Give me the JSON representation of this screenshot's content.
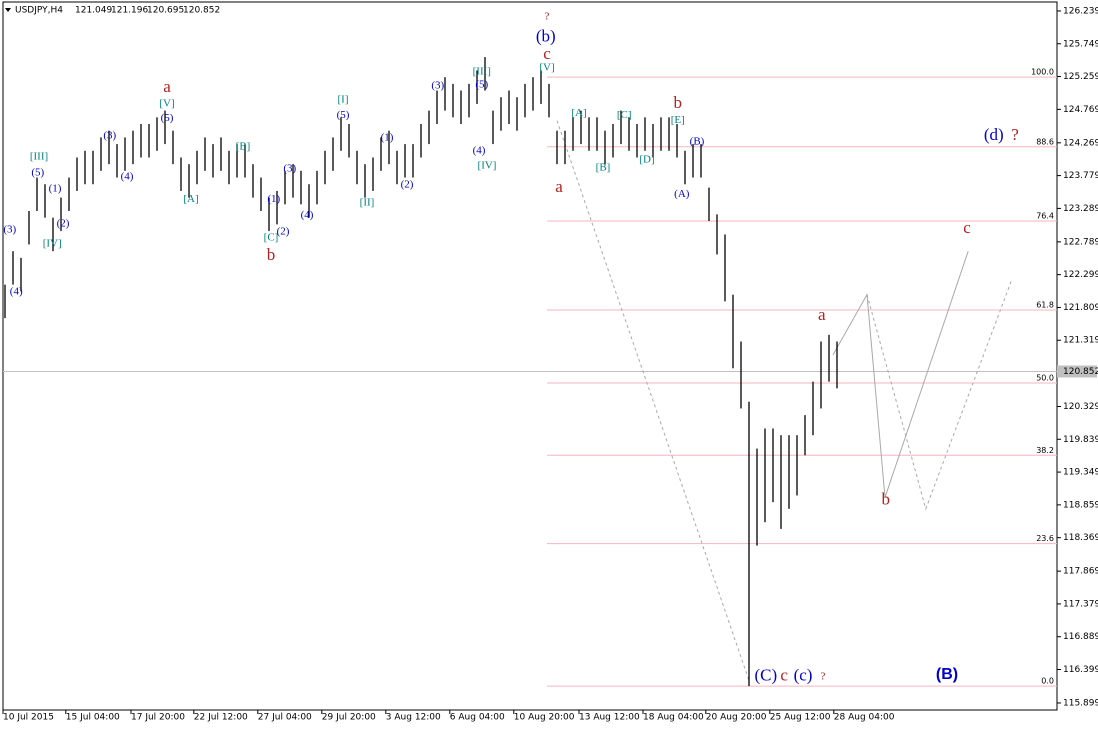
{
  "chart_data": {
    "type": "ohlc",
    "header": {
      "symbol": "USDJPY,H4",
      "open": 121.049,
      "high": 121.196,
      "low": 120.695,
      "close": 120.852
    },
    "color": "#000000",
    "xlim": [
      -0.25,
      131.5
    ],
    "ylim": [
      115.794,
      126.373
    ],
    "yticks": [
      126.239,
      125.749,
      125.259,
      124.769,
      124.269,
      123.779,
      123.289,
      122.789,
      122.299,
      121.809,
      121.319,
      120.329,
      119.839,
      119.349,
      118.859,
      118.369,
      117.869,
      117.379,
      116.889,
      116.399,
      115.899
    ],
    "xticks": [
      {
        "value": -0.25,
        "label": "10 Jul 2015"
      },
      {
        "value": 7.6,
        "label": "15 Jul 04:00"
      },
      {
        "value": 15.75,
        "label": "17 Jul 20:00"
      },
      {
        "value": 23.6,
        "label": "22 Jul 12:00"
      },
      {
        "value": 31.6,
        "label": "27 Jul 04:00"
      },
      {
        "value": 39.6,
        "label": "29 Jul 20:00"
      },
      {
        "value": 47.6,
        "label": "3 Aug 12:00"
      },
      {
        "value": 55.6,
        "label": "6 Aug 04:00"
      },
      {
        "value": 63.6,
        "label": "10 Aug 20:00"
      },
      {
        "value": 71.75,
        "label": "13 Aug 12:00"
      },
      {
        "value": 79.75,
        "label": "18 Aug 04:00"
      },
      {
        "value": 87.6,
        "label": "20 Aug 20:00"
      },
      {
        "value": 95.6,
        "label": "25 Aug 12:00"
      },
      {
        "value": 103.6,
        "label": "28 Aug 04:00"
      }
    ],
    "high": [
      122.15,
      122.65,
      122.55,
      123.25,
      123.75,
      123.65,
      123.15,
      123.45,
      123.75,
      124.05,
      124.15,
      124.15,
      124.35,
      124.45,
      124.25,
      124.35,
      124.45,
      124.55,
      124.55,
      124.65,
      124.75,
      124.45,
      124.05,
      123.95,
      124.15,
      124.35,
      124.25,
      124.35,
      124.15,
      124.25,
      124.25,
      123.95,
      123.75,
      123.45,
      123.55,
      123.85,
      123.95,
      123.85,
      123.65,
      123.85,
      124.15,
      124.35,
      124.65,
      124.55,
      124.15,
      123.95,
      124.05,
      124.35,
      124.45,
      124.15,
      124.25,
      124.25,
      124.55,
      124.75,
      125.05,
      125.25,
      125.15,
      125.05,
      125.15,
      125.35,
      125.55,
      124.75,
      124.95,
      125.05,
      124.95,
      125.15,
      125.25,
      125.35,
      125.15,
      124.45,
      124.45,
      124.65,
      124.75,
      124.65,
      124.65,
      124.45,
      124.55,
      124.75,
      124.65,
      124.55,
      124.65,
      124.55,
      124.65,
      124.65,
      124.55,
      124.15,
      124.25,
      124.25,
      123.6,
      123.2,
      122.9,
      122.0,
      121.3,
      120.4,
      119.7,
      120.0,
      120.0,
      119.9,
      119.9,
      119.9,
      120.2,
      120.7,
      121.3,
      121.4,
      121.3
    ],
    "low": [
      121.65,
      122.15,
      122.05,
      122.75,
      123.25,
      123.15,
      122.65,
      122.95,
      123.25,
      123.55,
      123.65,
      123.65,
      123.85,
      123.95,
      123.75,
      123.85,
      123.95,
      124.05,
      124.05,
      124.15,
      124.25,
      123.95,
      123.55,
      123.45,
      123.65,
      123.85,
      123.75,
      123.85,
      123.65,
      123.75,
      123.75,
      123.45,
      123.25,
      122.95,
      123.05,
      123.35,
      123.45,
      123.35,
      123.15,
      123.35,
      123.65,
      123.85,
      124.15,
      124.05,
      123.65,
      123.45,
      123.55,
      123.85,
      123.95,
      123.65,
      123.75,
      123.75,
      124.05,
      124.25,
      124.55,
      124.75,
      124.65,
      124.55,
      124.65,
      124.85,
      125.05,
      124.25,
      124.45,
      124.55,
      124.45,
      124.65,
      124.75,
      124.85,
      124.65,
      123.95,
      123.95,
      124.15,
      124.25,
      124.15,
      124.15,
      123.95,
      124.05,
      124.25,
      124.15,
      124.05,
      124.15,
      124.05,
      124.15,
      124.15,
      124.05,
      123.65,
      123.75,
      123.75,
      123.1,
      122.6,
      121.9,
      120.9,
      120.3,
      116.15,
      118.25,
      118.6,
      118.9,
      118.5,
      118.8,
      119.0,
      119.6,
      119.9,
      120.3,
      120.7,
      120.6
    ],
    "fib_color": "#f4b6c2",
    "fib_start": 67.75,
    "fib_levels": [
      {
        "label": "100.0",
        "price": 125.25
      },
      {
        "label": "88.6",
        "price": 124.21
      },
      {
        "label": "76.4",
        "price": 123.1
      },
      {
        "label": "61.8",
        "price": 121.77
      },
      {
        "label": "50.0",
        "price": 120.68
      },
      {
        "label": "38.2",
        "price": 119.6
      },
      {
        "label": "23.6",
        "price": 118.28
      },
      {
        "label": "0.0",
        "price": 116.15
      }
    ],
    "projections": [
      {
        "style": "dashed",
        "x": [
          69,
          93.1
        ],
        "y": [
          124.6,
          116.2
        ]
      },
      {
        "style": "solid",
        "x": [
          103.5,
          107.75,
          110,
          120.4
        ],
        "y": [
          121.1,
          122.0,
          118.97,
          122.65
        ]
      },
      {
        "style": "dashed",
        "x": [
          107.75,
          115.1,
          125.9
        ],
        "y": [
          122.0,
          118.8,
          122.24
        ]
      }
    ],
    "annotations": [
      {
        "text": "?",
        "x": 67.75,
        "y": 126.15,
        "color": "#b22222"
      },
      {
        "text": "(b)",
        "x": 67.6,
        "y": 125.84,
        "color": "#0000cc",
        "size": "large"
      },
      {
        "text": "c",
        "x": 67.75,
        "y": 125.58,
        "color": "#b22222",
        "size": "large"
      },
      {
        "text": "[V]",
        "x": 67.75,
        "y": 125.39,
        "color": "#008080"
      },
      {
        "text": "a",
        "x": 20.25,
        "y": 125.09,
        "color": "#b22222",
        "size": "large"
      },
      {
        "text": "[V]",
        "x": 20.25,
        "y": 124.85,
        "color": "#008080"
      },
      {
        "text": "(5)",
        "x": 20.25,
        "y": 124.63,
        "color": "#0000cc"
      },
      {
        "text": "(3)",
        "x": 13.1,
        "y": 124.37,
        "color": "#0000cc"
      },
      {
        "text": "(4)",
        "x": 15.25,
        "y": 123.76,
        "color": "#0000cc"
      },
      {
        "text": "[III]",
        "x": 4.25,
        "y": 124.06,
        "color": "#008080"
      },
      {
        "text": "(5)",
        "x": 4.1,
        "y": 123.82,
        "color": "#0000cc"
      },
      {
        "text": "(1)",
        "x": 6.25,
        "y": 123.58,
        "color": "#0000cc"
      },
      {
        "text": "(2)",
        "x": 7.25,
        "y": 123.06,
        "color": "#0000cc"
      },
      {
        "text": "[IV]",
        "x": 5.9,
        "y": 122.76,
        "color": "#008080"
      },
      {
        "text": "(3)",
        "x": 0.6,
        "y": 122.97,
        "color": "#0000cc"
      },
      {
        "text": "(4)",
        "x": 1.4,
        "y": 122.04,
        "color": "#0000cc"
      },
      {
        "text": "[A]",
        "x": 23.25,
        "y": 123.42,
        "color": "#008080"
      },
      {
        "text": "[B]",
        "x": 29.75,
        "y": 124.21,
        "color": "#008080"
      },
      {
        "text": "(3)",
        "x": 35.6,
        "y": 123.88,
        "color": "#0000cc"
      },
      {
        "text": "(1)",
        "x": 33.6,
        "y": 123.42,
        "color": "#0000cc"
      },
      {
        "text": "(2)",
        "x": 34.75,
        "y": 122.94,
        "color": "#0000cc"
      },
      {
        "text": "[C]",
        "x": 33.25,
        "y": 122.85,
        "color": "#008080"
      },
      {
        "text": "b",
        "x": 33.25,
        "y": 122.58,
        "color": "#b22222",
        "size": "large"
      },
      {
        "text": "(4)",
        "x": 37.75,
        "y": 123.18,
        "color": "#0000cc"
      },
      {
        "text": "[I]",
        "x": 42.25,
        "y": 124.91,
        "color": "#008080"
      },
      {
        "text": "(5)",
        "x": 42.25,
        "y": 124.68,
        "color": "#0000cc"
      },
      {
        "text": "(1)",
        "x": 47.75,
        "y": 124.34,
        "color": "#0000cc"
      },
      {
        "text": "[II]",
        "x": 45.25,
        "y": 123.37,
        "color": "#008080"
      },
      {
        "text": "(2)",
        "x": 50.25,
        "y": 123.64,
        "color": "#0000cc"
      },
      {
        "text": "(3)",
        "x": 54.1,
        "y": 125.12,
        "color": "#0000cc"
      },
      {
        "text": "[III]",
        "x": 59.6,
        "y": 125.33,
        "color": "#008080"
      },
      {
        "text": "(5)",
        "x": 59.6,
        "y": 125.13,
        "color": "#0000cc"
      },
      {
        "text": "(4)",
        "x": 59.25,
        "y": 124.15,
        "color": "#0000cc"
      },
      {
        "text": "[IV]",
        "x": 60.25,
        "y": 123.92,
        "color": "#008080"
      },
      {
        "text": "[A]",
        "x": 71.75,
        "y": 124.71,
        "color": "#008080"
      },
      {
        "text": "[C]",
        "x": 77.4,
        "y": 124.68,
        "color": "#008080"
      },
      {
        "text": "[B]",
        "x": 74.75,
        "y": 123.89,
        "color": "#008080"
      },
      {
        "text": "[D]",
        "x": 80.25,
        "y": 124.01,
        "color": "#008080"
      },
      {
        "text": "b",
        "x": 84.1,
        "y": 124.85,
        "color": "#b22222",
        "size": "large"
      },
      {
        "text": "[E]",
        "x": 84.1,
        "y": 124.6,
        "color": "#008080"
      },
      {
        "text": "(B)",
        "x": 86.5,
        "y": 124.28,
        "color": "#0000cc"
      },
      {
        "text": "(A)",
        "x": 84.6,
        "y": 123.5,
        "color": "#0000cc"
      },
      {
        "text": "a",
        "x": 69.25,
        "y": 123.59,
        "color": "#b22222",
        "size": "large"
      },
      {
        "text": "(d)",
        "x": 123.6,
        "y": 124.37,
        "color": "#0000cc",
        "size": "large"
      },
      {
        "text": "?",
        "x": 126.25,
        "y": 124.37,
        "color": "#b22222",
        "size": "large"
      },
      {
        "text": "c",
        "x": 120.25,
        "y": 122.98,
        "color": "#b22222",
        "size": "large"
      },
      {
        "text": "a",
        "x": 102.1,
        "y": 121.68,
        "color": "#b22222",
        "size": "large"
      },
      {
        "text": "b",
        "x": 110.1,
        "y": 118.92,
        "color": "#b22222",
        "size": "large"
      },
      {
        "text": "(C)",
        "x": 95.1,
        "y": 116.29,
        "color": "#0000cc",
        "size": "large"
      },
      {
        "text": "c",
        "x": 97.4,
        "y": 116.29,
        "color": "#b22222",
        "size": "large"
      },
      {
        "text": "(c)",
        "x": 99.75,
        "y": 116.29,
        "color": "#0000cc",
        "size": "large"
      },
      {
        "text": "?",
        "x": 102.25,
        "y": 116.29,
        "color": "#b22222"
      },
      {
        "text": "(B)",
        "x": 117.75,
        "y": 116.32,
        "color": "#0000cc",
        "size": "bold"
      }
    ]
  }
}
